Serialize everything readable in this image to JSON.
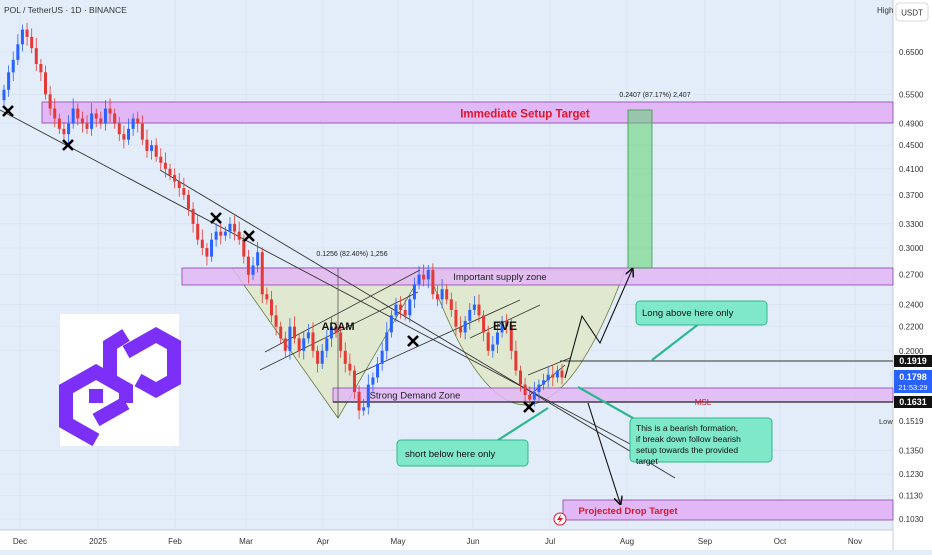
{
  "header": {
    "symbol_line": "POL / TetherUS · 1D · BINANCE",
    "high_label": "High",
    "currency_button": "USDT"
  },
  "price_axis": {
    "ticks": [
      "0.6500",
      "0.5500",
      "0.4900",
      "0.4500",
      "0.4100",
      "0.3700",
      "0.3300",
      "0.3000",
      "0.2700",
      "0.2400",
      "0.2200",
      "0.2000",
      "0.1350",
      "0.1230",
      "0.1130",
      "0.1030"
    ],
    "low_label": "Low",
    "low_value": "0.1519",
    "tag_upper": "0.1919",
    "tag_current": "0.1798",
    "tag_countdown": "21:53:29",
    "tag_lower": "0.1631"
  },
  "time_axis": [
    "Dec",
    "2025",
    "Feb",
    "Mar",
    "Apr",
    "May",
    "Jun",
    "Jul",
    "Aug",
    "Sep",
    "Oct",
    "Nov"
  ],
  "zones": {
    "immediate_target": "Immediate Setup Target",
    "supply": "Important supply zone",
    "demand": "Strong Demand Zone",
    "msl": "MSL",
    "drop_target": "Projected Drop Target"
  },
  "pattern": {
    "adam": "ADAM",
    "eve": "EVE"
  },
  "measurements": {
    "adam_depth": "0.1256 (82.40%) 1,256",
    "target_move": "0.2407 (87.17%) 2,407"
  },
  "callouts": {
    "long": "Long above here only",
    "short": "short below here only",
    "bearish": "This is a bearish formation, if break down follow bearish setup towards the provided target"
  },
  "colors": {
    "background": "#e3ecf9",
    "up_candle": "#2962ff",
    "down_candle": "#e53935",
    "zone_purple": "#e2b7f5",
    "zone_border": "#8e44ad",
    "pattern_fill": "#dfe8c0",
    "target_green": "#5bd16e",
    "callout_green": "#7fe8c8",
    "target_text": "#e0152b",
    "logo_purple": "#7b2ff7"
  },
  "icons": {
    "logo": "polygon-logo-icon",
    "flash": "lightning-icon"
  },
  "chart_data": {
    "type": "candlestick",
    "y_scale": "log",
    "ylim": [
      0.1,
      0.75
    ],
    "close_prices": [
      0.56,
      0.6,
      0.63,
      0.67,
      0.71,
      0.69,
      0.66,
      0.62,
      0.6,
      0.55,
      0.52,
      0.5,
      0.48,
      0.47,
      0.49,
      0.52,
      0.5,
      0.49,
      0.48,
      0.51,
      0.5,
      0.49,
      0.52,
      0.51,
      0.49,
      0.47,
      0.46,
      0.48,
      0.5,
      0.49,
      0.46,
      0.44,
      0.45,
      0.43,
      0.42,
      0.41,
      0.4,
      0.39,
      0.38,
      0.37,
      0.35,
      0.33,
      0.31,
      0.3,
      0.29,
      0.31,
      0.32,
      0.315,
      0.32,
      0.33,
      0.32,
      0.31,
      0.29,
      0.27,
      0.28,
      0.295,
      0.25,
      0.245,
      0.23,
      0.22,
      0.21,
      0.2,
      0.22,
      0.21,
      0.2,
      0.21,
      0.215,
      0.2,
      0.19,
      0.2,
      0.21,
      0.22,
      0.215,
      0.2,
      0.19,
      0.185,
      0.17,
      0.158,
      0.16,
      0.175,
      0.18,
      0.19,
      0.2,
      0.215,
      0.23,
      0.24,
      0.235,
      0.23,
      0.245,
      0.26,
      0.27,
      0.265,
      0.275,
      0.25,
      0.245,
      0.255,
      0.245,
      0.235,
      0.22,
      0.215,
      0.225,
      0.235,
      0.24,
      0.23,
      0.215,
      0.2,
      0.205,
      0.215,
      0.225,
      0.22,
      0.2,
      0.185,
      0.175,
      0.168,
      0.165,
      0.17,
      0.175,
      0.178,
      0.182,
      0.18,
      0.185,
      0.18
    ]
  }
}
